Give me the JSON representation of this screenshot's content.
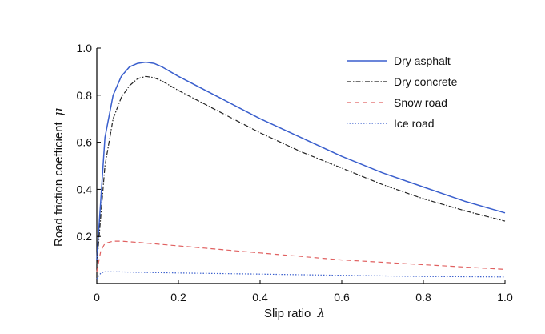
{
  "chart_data": {
    "type": "line",
    "xlabel": "Slip ratio",
    "xlabel_symbol": "λ",
    "ylabel": "Road friction coefficient",
    "ylabel_symbol": "μ",
    "xlim": [
      0,
      1.0
    ],
    "ylim": [
      0,
      1.0
    ],
    "xticks": [
      0,
      0.2,
      0.4,
      0.6,
      0.8,
      1.0
    ],
    "xtick_labels": [
      "0",
      "0.2",
      "0.4",
      "0.6",
      "0.8",
      "1.0"
    ],
    "yticks": [
      0.2,
      0.4,
      0.6,
      0.8,
      1.0
    ],
    "ytick_labels": [
      "0.2",
      "0.4",
      "0.6",
      "0.8",
      "1.0"
    ],
    "grid": false,
    "legend_position": "top-right",
    "series": [
      {
        "name": "Dry asphalt",
        "color": "#3a5fcd",
        "style": "solid",
        "x": [
          0,
          0.02,
          0.04,
          0.06,
          0.08,
          0.1,
          0.12,
          0.14,
          0.16,
          0.2,
          0.3,
          0.4,
          0.5,
          0.6,
          0.7,
          0.8,
          0.9,
          1.0
        ],
        "y": [
          0.1,
          0.62,
          0.8,
          0.88,
          0.92,
          0.935,
          0.94,
          0.935,
          0.92,
          0.88,
          0.79,
          0.7,
          0.62,
          0.54,
          0.47,
          0.41,
          0.35,
          0.3
        ]
      },
      {
        "name": "Dry concrete",
        "color": "#222222",
        "style": "dashdot",
        "x": [
          0,
          0.02,
          0.04,
          0.06,
          0.08,
          0.1,
          0.12,
          0.14,
          0.16,
          0.2,
          0.3,
          0.4,
          0.5,
          0.6,
          0.7,
          0.8,
          0.9,
          1.0
        ],
        "y": [
          0.08,
          0.5,
          0.7,
          0.79,
          0.84,
          0.87,
          0.88,
          0.875,
          0.86,
          0.82,
          0.73,
          0.64,
          0.56,
          0.49,
          0.42,
          0.36,
          0.31,
          0.265
        ]
      },
      {
        "name": "Snow road",
        "color": "#e06060",
        "style": "dashed",
        "x": [
          0,
          0.01,
          0.02,
          0.04,
          0.06,
          0.1,
          0.2,
          0.3,
          0.4,
          0.5,
          0.6,
          0.7,
          0.8,
          0.9,
          1.0
        ],
        "y": [
          0.05,
          0.14,
          0.17,
          0.18,
          0.18,
          0.175,
          0.16,
          0.145,
          0.13,
          0.115,
          0.1,
          0.09,
          0.08,
          0.07,
          0.06
        ]
      },
      {
        "name": "Ice road",
        "color": "#3a5fcd",
        "style": "dotted",
        "x": [
          0,
          0.01,
          0.02,
          0.05,
          0.1,
          0.2,
          0.4,
          0.6,
          0.8,
          1.0
        ],
        "y": [
          0.02,
          0.045,
          0.05,
          0.05,
          0.048,
          0.045,
          0.04,
          0.035,
          0.03,
          0.028
        ]
      }
    ]
  }
}
